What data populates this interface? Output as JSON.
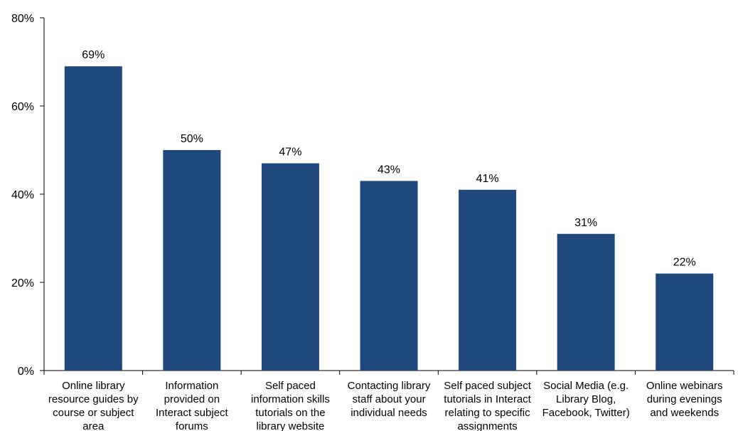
{
  "chart_data": {
    "type": "bar",
    "title": "",
    "xlabel": "",
    "ylabel": "",
    "ylim": [
      0,
      80
    ],
    "yticks": [
      0,
      20,
      40,
      60,
      80
    ],
    "ytick_labels": [
      "0%",
      "20%",
      "40%",
      "60%",
      "80%"
    ],
    "grid": false,
    "bar_color": "#1f497d",
    "categories": [
      [
        "Online library",
        "resource guides by",
        "course or subject",
        "area"
      ],
      [
        "Information",
        "provided on",
        "Interact subject",
        "forums"
      ],
      [
        "Self paced",
        "information skills",
        "tutorials on the",
        "library website"
      ],
      [
        "Contacting library",
        "staff about your",
        "individual needs"
      ],
      [
        "Self paced subject",
        "tutorials in Interact",
        "relating to specific",
        "assignments"
      ],
      [
        "Social Media (e.g.",
        "Library Blog,",
        "Facebook, Twitter)"
      ],
      [
        "Online webinars",
        "during evenings",
        "and weekends"
      ]
    ],
    "values": [
      69,
      50,
      47,
      43,
      41,
      31,
      22
    ],
    "data_labels": [
      "69%",
      "50%",
      "47%",
      "43%",
      "41%",
      "31%",
      "22%"
    ]
  }
}
